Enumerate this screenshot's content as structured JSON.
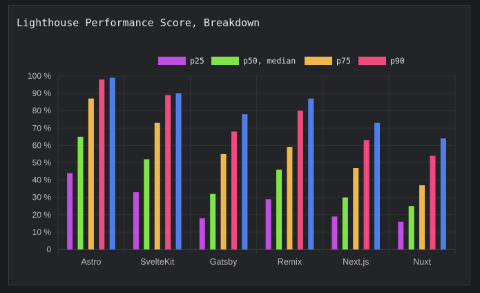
{
  "chart_data": {
    "type": "bar",
    "title": "Lighthouse Performance Score, Breakdown",
    "categories": [
      "Astro",
      "SvelteKit",
      "Gatsby",
      "Remix",
      "Next.js",
      "Nuxt"
    ],
    "series": [
      {
        "name": "p25",
        "color": "#c04ee0",
        "values": [
          44,
          33,
          18,
          29,
          19,
          16
        ]
      },
      {
        "name": "p50, median",
        "color": "#7fe34a",
        "values": [
          65,
          52,
          32,
          46,
          30,
          25
        ]
      },
      {
        "name": "p75",
        "color": "#f0b84c",
        "values": [
          87,
          73,
          55,
          59,
          47,
          37
        ]
      },
      {
        "name": "p90",
        "color": "#ef4b7f",
        "values": [
          98,
          89,
          68,
          80,
          63,
          54
        ]
      },
      {
        "name": "",
        "color": "#4f7ee8",
        "values": [
          99,
          90,
          78,
          87,
          73,
          64
        ]
      }
    ],
    "yticks": [
      "0",
      "10 %",
      "20 %",
      "30 %",
      "40 %",
      "50 %",
      "60 %",
      "70 %",
      "80 %",
      "90 %",
      "100 %"
    ],
    "ylim": [
      0,
      100
    ],
    "xlabel": "",
    "ylabel": "",
    "grid": true,
    "legend_position": "top"
  }
}
